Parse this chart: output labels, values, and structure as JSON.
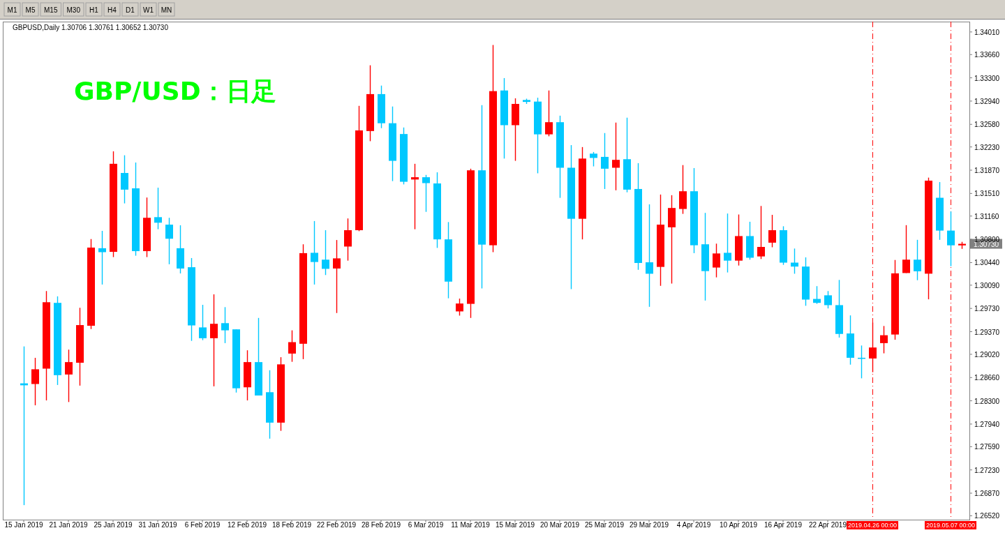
{
  "chart_data": {
    "type": "candlestick",
    "title": "GBP/USD：日足",
    "subtitle": "GBPUSD,Daily  1.30706 1.30761 1.30652 1.30730",
    "categories": [
      "15 Jan 2019",
      null,
      null,
      null,
      "21 Jan 2019",
      null,
      null,
      null,
      "25 Jan 2019",
      null,
      null,
      null,
      "31 Jan 2019",
      null,
      null,
      null,
      "6 Feb 2019",
      null,
      null,
      null,
      "12 Feb 2019",
      null,
      null,
      null,
      "18 Feb 2019",
      null,
      null,
      null,
      "22 Feb 2019",
      null,
      null,
      null,
      "28 Feb 2019",
      null,
      null,
      null,
      "6 Mar 2019",
      null,
      null,
      null,
      "11 Mar 2019",
      null,
      null,
      null,
      "15 Mar 2019",
      null,
      null,
      null,
      "20 Mar 2019",
      null,
      null,
      null,
      "25 Mar 2019",
      null,
      null,
      null,
      "29 Mar 2019",
      null,
      null,
      null,
      "4 Apr 2019",
      null,
      null,
      null,
      "10 Apr 2019",
      null,
      null,
      null,
      "16 Apr 2019",
      null,
      null,
      null,
      "22 Apr 2019",
      null,
      null,
      null,
      "2019.04.26 00:00",
      null,
      null,
      null,
      null,
      null,
      null,
      "2019.05.07 00:00",
      null
    ],
    "ohlc": [
      [
        1.2857,
        1.29142,
        1.26685,
        1.2854
      ],
      [
        1.2856,
        1.28965,
        1.2823,
        1.28788
      ],
      [
        1.28798,
        1.29999,
        1.28306,
        1.29826
      ],
      [
        1.29816,
        1.29917,
        1.28545,
        1.28697
      ],
      [
        1.28707,
        1.29092,
        1.28281,
        1.28899
      ],
      [
        1.28889,
        1.2974,
        1.28535,
        1.29472
      ],
      [
        1.29462,
        1.30804,
        1.29411,
        1.30672
      ],
      [
        1.30662,
        1.30931,
        1.301,
        1.30601
      ],
      [
        1.30606,
        1.32162,
        1.30525,
        1.31969
      ],
      [
        1.31827,
        1.32101,
        1.31356,
        1.31569
      ],
      [
        1.31589,
        1.31989,
        1.30546,
        1.30617
      ],
      [
        1.30617,
        1.31447,
        1.30525,
        1.31133
      ],
      [
        1.31143,
        1.31599,
        1.30956,
        1.31057
      ],
      [
        1.31027,
        1.31133,
        1.30414,
        1.30809
      ],
      [
        1.30662,
        1.31017,
        1.30272,
        1.30348
      ],
      [
        1.30368,
        1.3051,
        1.29228,
        1.29467
      ],
      [
        1.29436,
        1.29786,
        1.29239,
        1.29269
      ],
      [
        1.29269,
        1.29948,
        1.28524,
        1.29492
      ],
      [
        1.29502,
        1.2975,
        1.29193,
        1.29391
      ],
      [
        1.29406,
        1.29406,
        1.28428,
        1.28494
      ],
      [
        1.28509,
        1.29082,
        1.28306,
        1.28899
      ],
      [
        1.28899,
        1.29583,
        1.28382,
        1.28382
      ],
      [
        1.28433,
        1.28773,
        1.27714,
        1.27962
      ],
      [
        1.27962,
        1.28975,
        1.27835,
        1.28864
      ],
      [
        1.29031,
        1.29391,
        1.28904,
        1.29208
      ],
      [
        1.29183,
        1.30723,
        1.28945,
        1.30586
      ],
      [
        1.30591,
        1.31083,
        1.301,
        1.30449
      ],
      [
        1.30485,
        1.30941,
        1.30247,
        1.30343
      ],
      [
        1.30348,
        1.30789,
        1.29659,
        1.30505
      ],
      [
        1.30688,
        1.31123,
        1.3047,
        1.30941
      ],
      [
        1.30941,
        1.32866,
        1.30926,
        1.32486
      ],
      [
        1.32476,
        1.33494,
        1.32319,
        1.33048
      ],
      [
        1.33048,
        1.3318,
        1.32521,
        1.32597
      ],
      [
        1.32597,
        1.32856,
        1.31701,
        1.32015
      ],
      [
        1.3243,
        1.32531,
        1.3165,
        1.31691
      ],
      [
        1.31726,
        1.31969,
        1.30956,
        1.31761
      ],
      [
        1.31761,
        1.31797,
        1.31225,
        1.3167
      ],
      [
        1.31665,
        1.31837,
        1.30667,
        1.30799
      ],
      [
        1.30799,
        1.31067,
        1.29887,
        1.30145
      ],
      [
        1.29684,
        1.29882,
        1.29619,
        1.29806
      ],
      [
        1.29801,
        1.31893,
        1.29583,
        1.31868
      ],
      [
        1.31868,
        1.32876,
        1.30039,
        1.30718
      ],
      [
        1.30708,
        1.33808,
        1.30601,
        1.33094
      ],
      [
        1.33104,
        1.33296,
        1.3205,
        1.32567
      ],
      [
        1.32567,
        1.32982,
        1.32015,
        1.32896
      ],
      [
        1.32957,
        1.32977,
        1.32896,
        1.32927
      ],
      [
        1.32932,
        1.32992,
        1.31822,
        1.32425
      ],
      [
        1.32425,
        1.33104,
        1.32395,
        1.32613
      ],
      [
        1.32613,
        1.32714,
        1.31442,
        1.31908
      ],
      [
        1.31908,
        1.32258,
        1.30029,
        1.31118
      ],
      [
        1.31118,
        1.32228,
        1.30799,
        1.3205
      ],
      [
        1.32126,
        1.32152,
        1.31929,
        1.3206
      ],
      [
        1.32076,
        1.32445,
        1.31579,
        1.31893
      ],
      [
        1.31908,
        1.32607,
        1.31559,
        1.3203
      ],
      [
        1.3204,
        1.32683,
        1.31528,
        1.31569
      ],
      [
        1.31579,
        1.31979,
        1.30328,
        1.30434
      ],
      [
        1.30444,
        1.31341,
        1.29755,
        1.30267
      ],
      [
        1.30373,
        1.31493,
        1.3008,
        1.31027
      ],
      [
        1.30986,
        1.31483,
        1.30115,
        1.31285
      ],
      [
        1.3127,
        1.31949,
        1.31194,
        1.31544
      ],
      [
        1.31544,
        1.31903,
        1.30586,
        1.30708
      ],
      [
        1.30723,
        1.31209,
        1.29852,
        1.30308
      ],
      [
        1.30363,
        1.30733,
        1.30211,
        1.30581
      ],
      [
        1.30591,
        1.31199,
        1.30287,
        1.3047
      ],
      [
        1.3047,
        1.31184,
        1.30394,
        1.3085
      ],
      [
        1.3085,
        1.31072,
        1.30485,
        1.30515
      ],
      [
        1.30535,
        1.31316,
        1.30495,
        1.30682
      ],
      [
        1.30748,
        1.31179,
        1.30677,
        1.30941
      ],
      [
        1.30941,
        1.31002,
        1.30404,
        1.30439
      ],
      [
        1.30439,
        1.30657,
        1.30267,
        1.30378
      ],
      [
        1.30378,
        1.3052,
        1.29771,
        1.29867
      ],
      [
        1.29877,
        1.30075,
        1.29801,
        1.29816
      ],
      [
        1.29933,
        1.29999,
        1.2973,
        1.29781
      ],
      [
        1.29781,
        1.30171,
        1.29279,
        1.29335
      ],
      [
        1.29342,
        1.29622,
        1.2886,
        1.28966
      ],
      [
        1.28966,
        1.29156,
        1.28648,
        1.28955
      ],
      [
        1.28955,
        1.29511,
        1.28743,
        1.29125
      ],
      [
        1.29193,
        1.29458,
        1.29035,
        1.29315
      ],
      [
        1.29326,
        1.3048,
        1.29246,
        1.30273
      ],
      [
        1.30278,
        1.31019,
        1.30278,
        1.30485
      ],
      [
        1.30485,
        1.30792,
        1.30167,
        1.30305
      ],
      [
        1.30268,
        1.31755,
        1.29871,
        1.31708
      ],
      [
        1.31443,
        1.31686,
        1.30792,
        1.30935
      ],
      [
        1.30935,
        1.31231,
        1.30384,
        1.30707
      ],
      [
        1.30706,
        1.30761,
        1.30652,
        1.3073
      ]
    ],
    "colors": [
      "#00c8ff",
      "#ff0000",
      "#ff0000",
      "#00c8ff",
      "#ff0000",
      "#ff0000",
      "#ff0000",
      "#00c8ff",
      "#ff0000",
      "#00c8ff",
      "#00c8ff",
      "#ff0000",
      "#00c8ff",
      "#00c8ff",
      "#00c8ff",
      "#00c8ff",
      "#00c8ff",
      "#ff0000",
      "#00c8ff",
      "#00c8ff",
      "#ff0000",
      "#00c8ff",
      "#00c8ff",
      "#ff0000",
      "#ff0000",
      "#ff0000",
      "#00c8ff",
      "#00c8ff",
      "#ff0000",
      "#ff0000",
      "#ff0000",
      "#ff0000",
      "#00c8ff",
      "#00c8ff",
      "#00c8ff",
      "#ff0000",
      "#00c8ff",
      "#00c8ff",
      "#00c8ff",
      "#ff0000",
      "#ff0000",
      "#00c8ff",
      "#ff0000",
      "#00c8ff",
      "#ff0000",
      "#00c8ff",
      "#00c8ff",
      "#ff0000",
      "#00c8ff",
      "#00c8ff",
      "#ff0000",
      "#00c8ff",
      "#00c8ff",
      "#ff0000",
      "#00c8ff",
      "#00c8ff",
      "#00c8ff",
      "#ff0000",
      "#ff0000",
      "#ff0000",
      "#00c8ff",
      "#00c8ff",
      "#ff0000",
      "#00c8ff",
      "#ff0000",
      "#00c8ff",
      "#ff0000",
      "#ff0000",
      "#00c8ff",
      "#00c8ff",
      "#00c8ff",
      "#00c8ff",
      "#00c8ff",
      "#00c8ff",
      "#00c8ff",
      "#00c8ff",
      "#ff0000",
      "#ff0000",
      "#ff0000",
      "#ff0000",
      "#00c8ff",
      "#ff0000",
      "#00c8ff",
      "#00c8ff",
      "#ff0000"
    ],
    "ylim": [
      1.2646,
      1.3417
    ],
    "yticks": [
      {
        "value": 1.3401,
        "label": "1.34010"
      },
      {
        "value": 1.3366,
        "label": "1.33660"
      },
      {
        "value": 1.333,
        "label": "1.33300"
      },
      {
        "value": 1.3294,
        "label": "1.32940"
      },
      {
        "value": 1.3258,
        "label": "1.32580"
      },
      {
        "value": 1.3223,
        "label": "1.32230"
      },
      {
        "value": 1.3187,
        "label": "1.31870"
      },
      {
        "value": 1.3151,
        "label": "1.31510"
      },
      {
        "value": 1.3116,
        "label": "1.31160"
      },
      {
        "value": 1.308,
        "label": "1.30800"
      },
      {
        "value": 1.3044,
        "label": "1.30440"
      },
      {
        "value": 1.3009,
        "label": "1.30090"
      },
      {
        "value": 1.2973,
        "label": "1.29730"
      },
      {
        "value": 1.2937,
        "label": "1.29370"
      },
      {
        "value": 1.2902,
        "label": "1.29020"
      },
      {
        "value": 1.2866,
        "label": "1.28660"
      },
      {
        "value": 1.283,
        "label": "1.28300"
      },
      {
        "value": 1.2794,
        "label": "1.27940"
      },
      {
        "value": 1.2759,
        "label": "1.27590"
      },
      {
        "value": 1.2723,
        "label": "1.27230"
      },
      {
        "value": 1.2687,
        "label": "1.26870"
      },
      {
        "value": 1.2652,
        "label": "1.26520"
      }
    ],
    "ref_lines": [
      {
        "axis": "x",
        "value": "2019.04.26 00:00",
        "color": "#ff0000",
        "line_style": "dashed"
      },
      {
        "axis": "x",
        "value": "2019.05.07 00:00",
        "color": "#ff0000",
        "line_style": "dashed"
      }
    ],
    "annotations": [
      "M1",
      "M5",
      "M15",
      "M30",
      "H1",
      "H4",
      "D1",
      "W1",
      "MN",
      "1.30730"
    ]
  }
}
